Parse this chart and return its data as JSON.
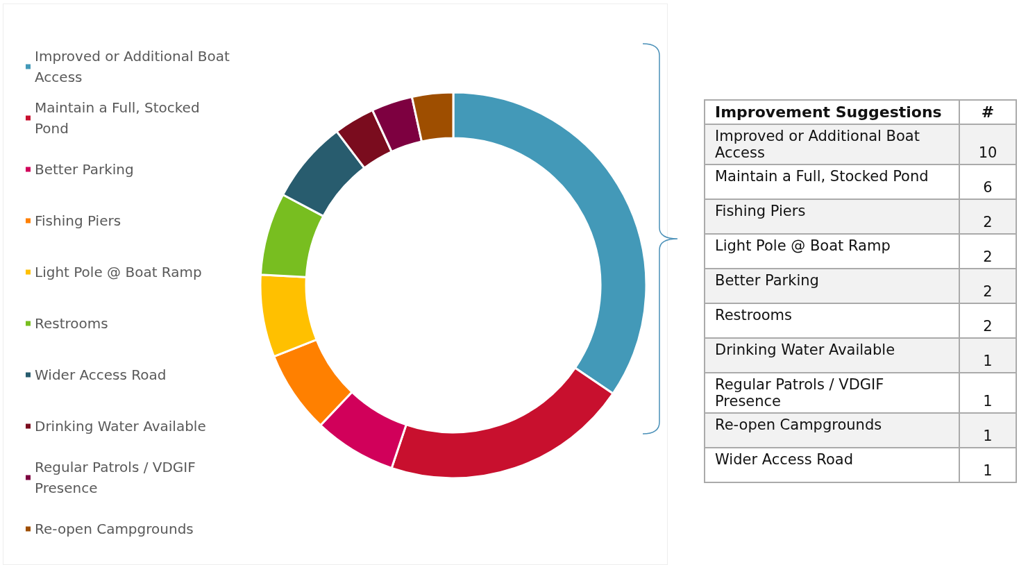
{
  "chart_data": [
    {
      "type": "donut",
      "categories": [
        "Improved or Additional Boat Access",
        "Maintain a Full, Stocked Pond",
        "Better Parking",
        "Fishing Piers",
        "Light Pole @ Boat Ramp",
        "Restrooms",
        "Wider Access Road",
        "Drinking Water Available",
        "Regular Patrols / VDGIF Presence",
        "Re-open Campgrounds"
      ],
      "values": [
        34.49,
        20.69,
        6.9,
        6.9,
        6.9,
        6.9,
        6.9,
        3.44,
        3.44,
        3.44
      ],
      "colors": [
        "#4399b8",
        "#c8102e",
        "#d1005a",
        "#ff8000",
        "#ffc000",
        "#78be20",
        "#285c6e",
        "#7a0c1e",
        "#7d0040",
        "#9e4e00"
      ],
      "legend": "left"
    },
    {
      "type": "other",
      "title": "Improvement Suggestions",
      "xlabel": "#",
      "categories": [
        "Improved or Additional Boat Access",
        "Maintain a Full, Stocked Pond",
        "Fishing Piers",
        "Light Pole @ Boat Ramp",
        "Better Parking",
        "Restrooms",
        "Drinking Water Available",
        "Regular Patrols / VDGIF Presence",
        "Re-open Campgrounds",
        "Wider Access Road"
      ],
      "values": [
        10,
        6,
        2,
        2,
        2,
        2,
        1,
        1,
        1,
        1
      ],
      "data_labels": true
    }
  ]
}
